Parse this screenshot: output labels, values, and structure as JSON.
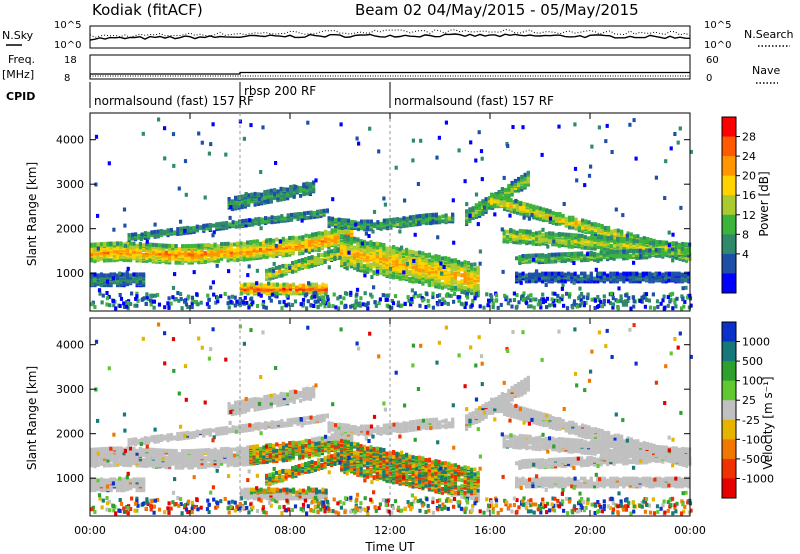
{
  "header": {
    "station": "Kodiak (fitACF)",
    "beam_info": "Beam 02 04/May/2015 - 05/May/2015"
  },
  "chart_data": [
    {
      "type": "line",
      "title": "",
      "left_label": "N.Sky",
      "right_label": "N.Search",
      "left_ticks": [
        "10^5",
        "10^0"
      ],
      "right_ticks": [
        "10^5",
        "10^0"
      ]
    },
    {
      "type": "line",
      "left_label_top": "Freq.",
      "left_label_unit": "[MHz]",
      "right_label": "Nave",
      "left_ticks": [
        "18",
        "8"
      ],
      "right_ticks": [
        "60",
        "0"
      ],
      "freq_level": 10.5
    },
    {
      "type": "table",
      "label": "CPID",
      "segments": [
        {
          "text": "normalsound (fast) 157 RF",
          "start_hour": 0,
          "end_hour": 6
        },
        {
          "text": "rbsp 200 RF",
          "start_hour": 6,
          "end_hour": 12
        },
        {
          "text": "normalsound (fast) 157 RF",
          "start_hour": 12,
          "end_hour": 24
        }
      ]
    },
    {
      "type": "heatmap",
      "ylabel": "Slant Range [km]",
      "yticks": [
        1000,
        2000,
        3000,
        4000
      ],
      "ylim": [
        150,
        4600
      ],
      "colorbar_label": "Power [dB]",
      "colorbar_ticks": [
        "28",
        "24",
        "20",
        "16",
        "12",
        "8",
        "4"
      ],
      "colorbar_colors": [
        "#ff0000",
        "#ff5a00",
        "#ff9600",
        "#ffd200",
        "#aaca30",
        "#3cb43c",
        "#2e8a6a",
        "#1e50a8",
        "#0000ff"
      ]
    },
    {
      "type": "heatmap",
      "ylabel": "Slant Range [km]",
      "yticks": [
        1000,
        2000,
        3000,
        4000
      ],
      "ylim": [
        150,
        4600
      ],
      "colorbar_label": "Velocity [m s⁻¹]",
      "colorbar_ticks": [
        "1000",
        "500",
        "100",
        "25",
        "-25",
        "-100",
        "-500",
        "-1000"
      ],
      "colorbar_colors": [
        "#0a32c8",
        "#167878",
        "#2ea02e",
        "#62c832",
        "#c0c0c0",
        "#e6b400",
        "#f07800",
        "#f03200",
        "#e60000"
      ]
    }
  ],
  "x_axis": {
    "xlabel": "Time UT",
    "xticks": [
      "00:00",
      "04:00",
      "08:00",
      "12:00",
      "16:00",
      "20:00",
      "00:00"
    ],
    "xlim_hours": [
      0,
      24
    ]
  }
}
